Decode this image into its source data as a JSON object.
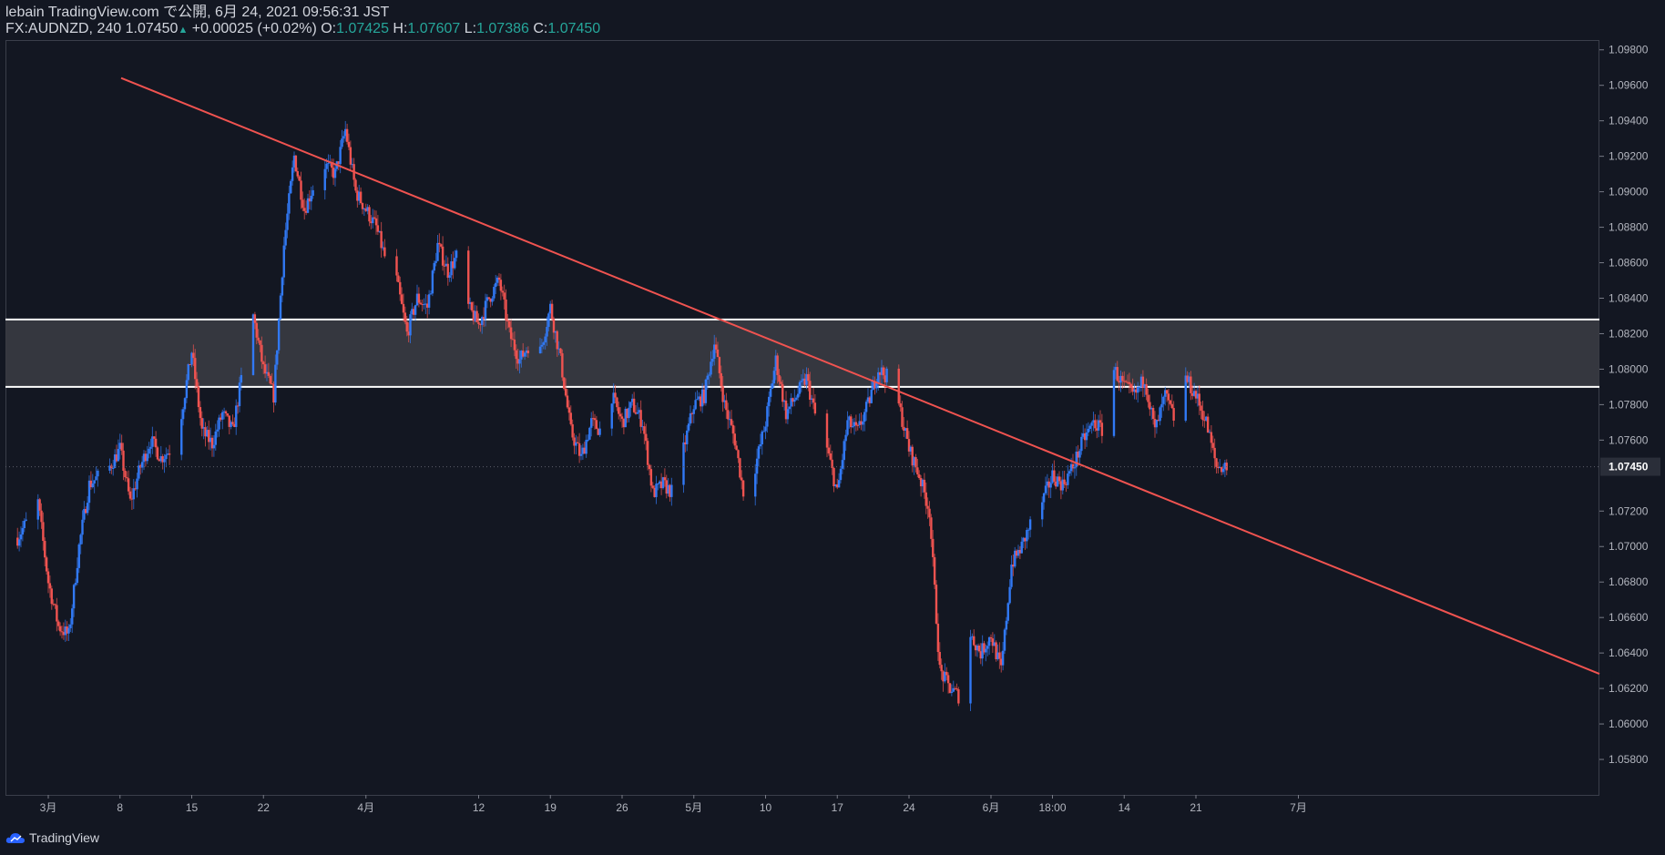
{
  "header": {
    "publish_line": "lebain TradingView.com で公開, 6月 24, 2021 09:56:31 JST",
    "symbol": "FX:AUDNZD, 240",
    "last_price": "1.07450",
    "change": "+0.00025 (+0.02%)",
    "open_label": "O:",
    "open": "1.07425",
    "high_label": "H:",
    "high": "1.07607",
    "low_label": "L:",
    "low": "1.07386",
    "close_label": "C:",
    "close": "1.07450"
  },
  "footer": {
    "brand": "TradingView",
    "logo_icon": "tradingview-cloud-icon"
  },
  "colors": {
    "background": "#131722",
    "up": "#3179f5",
    "down": "#f05350",
    "trendline": "#f05350",
    "zone_fill": "#3a3b42",
    "zone_border": "#ffffff",
    "last_price_label": "#2a2e39",
    "axis_text": "#b2b5be"
  },
  "chart_data": {
    "type": "candlestick",
    "symbol": "FX:AUDNZD",
    "timeframe": "240",
    "ylim": [
      1.056,
      1.0985
    ],
    "y_ticks": [
      "1.09800",
      "1.09600",
      "1.09400",
      "1.09200",
      "1.09000",
      "1.08800",
      "1.08600",
      "1.08400",
      "1.08200",
      "1.08000",
      "1.07800",
      "1.07600",
      "1.07200",
      "1.07000",
      "1.06800",
      "1.06600",
      "1.06400",
      "1.06200",
      "1.06000",
      "1.05800"
    ],
    "x_ticks": [
      {
        "label": "3月",
        "date": "2021-03-01"
      },
      {
        "label": "8",
        "date": "2021-03-08"
      },
      {
        "label": "15",
        "date": "2021-03-15"
      },
      {
        "label": "22",
        "date": "2021-03-22"
      },
      {
        "label": "4月",
        "date": "2021-04-01"
      },
      {
        "label": "12",
        "date": "2021-04-12"
      },
      {
        "label": "19",
        "date": "2021-04-19"
      },
      {
        "label": "26",
        "date": "2021-04-26"
      },
      {
        "label": "5月",
        "date": "2021-05-03"
      },
      {
        "label": "10",
        "date": "2021-05-10"
      },
      {
        "label": "17",
        "date": "2021-05-17"
      },
      {
        "label": "24",
        "date": "2021-05-24"
      },
      {
        "label": "6月",
        "date": "2021-06-01"
      },
      {
        "label": "18:00",
        "date": "2021-06-07"
      },
      {
        "label": "14",
        "date": "2021-06-14"
      },
      {
        "label": "21",
        "date": "2021-06-21"
      },
      {
        "label": "7月",
        "date": "2021-07-01"
      }
    ],
    "last_price": "1.07450",
    "price_path": [
      [
        "2021-02-26",
        1.0705
      ],
      [
        "2021-02-28",
        1.0725
      ],
      [
        "2021-03-01",
        1.068
      ],
      [
        "2021-03-02",
        1.0655
      ],
      [
        "2021-03-03",
        1.065
      ],
      [
        "2021-03-04",
        1.07
      ],
      [
        "2021-03-05",
        1.0735
      ],
      [
        "2021-03-07",
        1.0745
      ],
      [
        "2021-03-08",
        1.0755
      ],
      [
        "2021-03-09",
        1.0725
      ],
      [
        "2021-03-10",
        1.0745
      ],
      [
        "2021-03-11",
        1.076
      ],
      [
        "2021-03-12",
        1.075
      ],
      [
        "2021-03-13",
        1.0755
      ],
      [
        "2021-03-14",
        1.0775
      ],
      [
        "2021-03-15",
        1.081
      ],
      [
        "2021-03-16",
        1.0765
      ],
      [
        "2021-03-17",
        1.0758
      ],
      [
        "2021-03-18",
        1.0775
      ],
      [
        "2021-03-19",
        1.0765
      ],
      [
        "2021-03-20",
        1.08
      ],
      [
        "2021-03-21",
        1.083
      ],
      [
        "2021-03-22",
        1.08
      ],
      [
        "2021-03-23",
        1.0785
      ],
      [
        "2021-03-24",
        1.087
      ],
      [
        "2021-03-25",
        1.092
      ],
      [
        "2021-03-26",
        1.089
      ],
      [
        "2021-03-27",
        1.0905
      ],
      [
        "2021-03-28",
        1.0915
      ],
      [
        "2021-03-29",
        1.091
      ],
      [
        "2021-03-30",
        1.0935
      ],
      [
        "2021-03-31",
        1.09
      ],
      [
        "2021-04-01",
        1.089
      ],
      [
        "2021-04-02",
        1.088
      ],
      [
        "2021-04-03",
        1.086
      ],
      [
        "2021-04-04",
        1.085
      ],
      [
        "2021-04-05",
        1.082
      ],
      [
        "2021-04-06",
        1.084
      ],
      [
        "2021-04-07",
        1.0835
      ],
      [
        "2021-04-08",
        1.087
      ],
      [
        "2021-04-09",
        1.0855
      ],
      [
        "2021-04-10",
        1.0865
      ],
      [
        "2021-04-11",
        1.0835
      ],
      [
        "2021-04-12",
        1.0825
      ],
      [
        "2021-04-13",
        1.084
      ],
      [
        "2021-04-14",
        1.085
      ],
      [
        "2021-04-15",
        1.082
      ],
      [
        "2021-04-16",
        1.0805
      ],
      [
        "2021-04-17",
        1.0815
      ],
      [
        "2021-04-18",
        1.081
      ],
      [
        "2021-04-19",
        1.0835
      ],
      [
        "2021-04-20",
        1.0805
      ],
      [
        "2021-04-21",
        1.0765
      ],
      [
        "2021-04-22",
        1.075
      ],
      [
        "2021-04-23",
        1.077
      ],
      [
        "2021-04-24",
        1.0765
      ],
      [
        "2021-04-25",
        1.0785
      ],
      [
        "2021-04-26",
        1.077
      ],
      [
        "2021-04-27",
        1.078
      ],
      [
        "2021-04-28",
        1.077
      ],
      [
        "2021-04-29",
        1.073
      ],
      [
        "2021-04-30",
        1.0735
      ],
      [
        "2021-05-01",
        1.073
      ],
      [
        "2021-05-02",
        1.0755
      ],
      [
        "2021-05-03",
        1.078
      ],
      [
        "2021-05-04",
        1.0785
      ],
      [
        "2021-05-05",
        1.0815
      ],
      [
        "2021-05-06",
        1.078
      ],
      [
        "2021-05-07",
        1.076
      ],
      [
        "2021-05-08",
        1.0725
      ],
      [
        "2021-05-09",
        1.0745
      ],
      [
        "2021-05-10",
        1.077
      ],
      [
        "2021-05-11",
        1.0805
      ],
      [
        "2021-05-12",
        1.0775
      ],
      [
        "2021-05-13",
        1.0785
      ],
      [
        "2021-05-14",
        1.0795
      ],
      [
        "2021-05-15",
        1.077
      ],
      [
        "2021-05-16",
        1.0755
      ],
      [
        "2021-05-17",
        1.073
      ],
      [
        "2021-05-18",
        1.077
      ],
      [
        "2021-05-19",
        1.0765
      ],
      [
        "2021-05-20",
        1.078
      ],
      [
        "2021-05-21",
        1.08
      ],
      [
        "2021-05-22",
        1.0795
      ],
      [
        "2021-05-23",
        1.078
      ],
      [
        "2021-05-24",
        1.0755
      ],
      [
        "2021-05-25",
        1.074
      ],
      [
        "2021-05-26",
        1.072
      ],
      [
        "2021-05-27",
        1.063
      ],
      [
        "2021-05-28",
        1.062
      ],
      [
        "2021-05-29",
        1.0615
      ],
      [
        "2021-05-30",
        1.065
      ],
      [
        "2021-05-31",
        1.064
      ],
      [
        "2021-06-01",
        1.065
      ],
      [
        "2021-06-02",
        1.063
      ],
      [
        "2021-06-03",
        1.069
      ],
      [
        "2021-06-04",
        1.07
      ],
      [
        "2021-06-05",
        1.0715
      ],
      [
        "2021-06-06",
        1.0725
      ],
      [
        "2021-06-07",
        1.074
      ],
      [
        "2021-06-08",
        1.0735
      ],
      [
        "2021-06-09",
        1.0745
      ],
      [
        "2021-06-10",
        1.076
      ],
      [
        "2021-06-11",
        1.077
      ],
      [
        "2021-06-12",
        1.0765
      ],
      [
        "2021-06-13",
        1.08
      ],
      [
        "2021-06-14",
        1.079
      ],
      [
        "2021-06-15",
        1.0785
      ],
      [
        "2021-06-16",
        1.0795
      ],
      [
        "2021-06-17",
        1.0765
      ],
      [
        "2021-06-18",
        1.0785
      ],
      [
        "2021-06-19",
        1.077
      ],
      [
        "2021-06-20",
        1.0795
      ],
      [
        "2021-06-21",
        1.0785
      ],
      [
        "2021-06-22",
        1.077
      ],
      [
        "2021-06-23",
        1.0745
      ],
      [
        "2021-06-24",
        1.0745
      ]
    ],
    "trendline": {
      "from": [
        "2021-02-25",
        1.099
      ],
      "to": [
        "2021-07-06",
        1.0685
      ]
    },
    "zone": {
      "top": 1.0828,
      "bottom": 1.079
    },
    "grid": false
  }
}
